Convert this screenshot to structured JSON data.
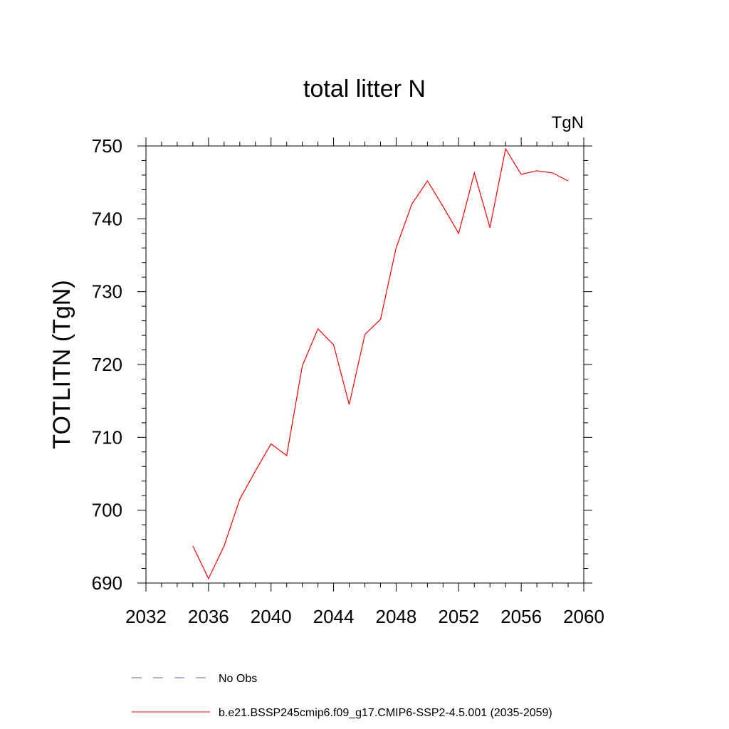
{
  "chart_data": {
    "type": "line",
    "title": "total litter N",
    "units_label": "TgN",
    "xlabel": "",
    "ylabel": "TOTLITN  (TgN)",
    "xlim": [
      2032,
      2060
    ],
    "ylim": [
      690,
      750
    ],
    "x_ticks": [
      2032,
      2036,
      2040,
      2044,
      2048,
      2052,
      2056,
      2060
    ],
    "y_ticks": [
      690,
      700,
      710,
      720,
      730,
      740,
      750
    ],
    "grid": false,
    "legend_placement": "bottom",
    "series": [
      {
        "name": "b.e21.BSSP245cmip6.f09_g17.CMIP6-SSP2-4.5.001 (2035-2059)",
        "color": "#ff0000",
        "line_style": "solid",
        "x": [
          2035,
          2036,
          2037,
          2038,
          2039,
          2040,
          2041,
          2042,
          2043,
          2044,
          2045,
          2046,
          2047,
          2048,
          2049,
          2050,
          2051,
          2052,
          2053,
          2054,
          2055,
          2056,
          2057,
          2058,
          2059
        ],
        "values": [
          695.1,
          690.6,
          695.1,
          701.5,
          705.4,
          709.1,
          707.5,
          719.8,
          724.9,
          722.7,
          714.5,
          724.1,
          726.2,
          736.0,
          742.0,
          745.2,
          741.7,
          738.0,
          746.3,
          738.8,
          749.6,
          746.1,
          746.6,
          746.3,
          745.2
        ]
      }
    ],
    "legend": [
      {
        "label": "No Obs",
        "color": "#6666cc",
        "line_style": "dashed"
      },
      {
        "label": "b.e21.BSSP245cmip6.f09_g17.CMIP6-SSP2-4.5.001 (2035-2059)",
        "color": "#ff0000",
        "line_style": "solid"
      }
    ]
  }
}
